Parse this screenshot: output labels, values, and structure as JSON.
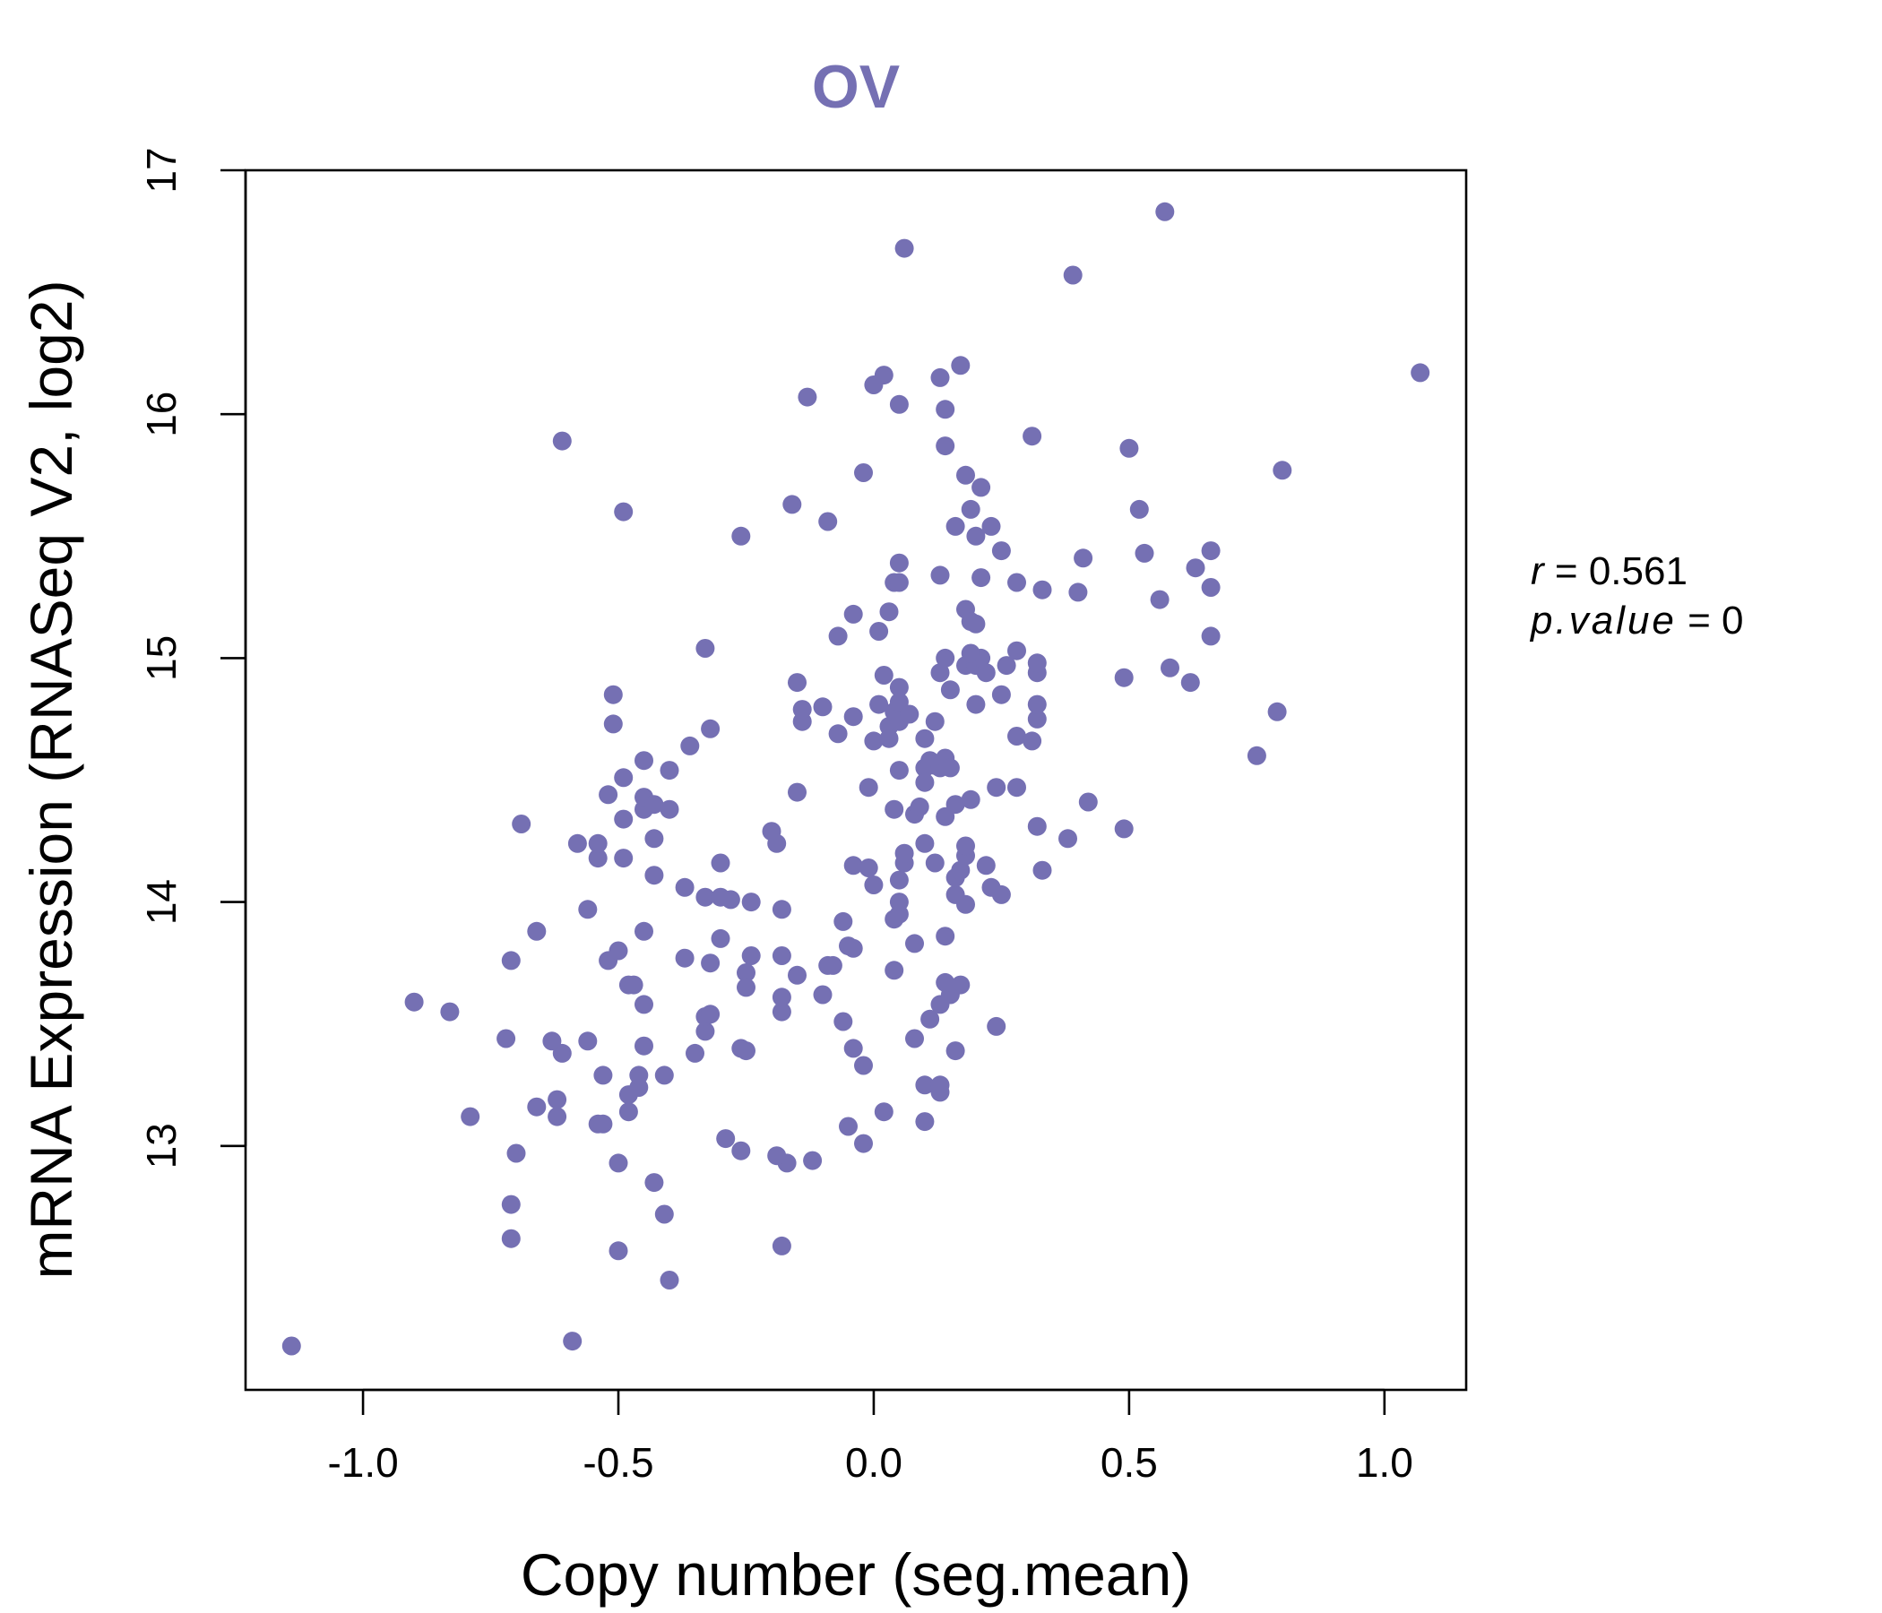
{
  "chart_data": {
    "type": "scatter",
    "title": "OV",
    "xlabel": "Copy number (seg.mean)",
    "ylabel": "mRNA Expression (RNASeq V2, log2)",
    "xlim": [
      -1.23,
      1.16
    ],
    "ylim": [
      12.0,
      17.0
    ],
    "xticks": [
      -1.0,
      -0.5,
      0.0,
      0.5,
      1.0
    ],
    "xtick_labels": [
      "-1.0",
      "-0.5",
      "0.0",
      "0.5",
      "1.0"
    ],
    "yticks": [
      13,
      14,
      15,
      16,
      17
    ],
    "ytick_labels": [
      "13",
      "14",
      "15",
      "16",
      "17"
    ],
    "grid": false,
    "legend": "none",
    "stats": {
      "r_symbol": "r",
      "r_value": "0.561",
      "p_symbol": "p.value",
      "p_value": "0"
    },
    "colors": {
      "points": "#7570b3",
      "title": "#7570b3",
      "axis": "#000000"
    },
    "points": [
      [
        -1.14,
        12.18
      ],
      [
        -0.59,
        12.2
      ],
      [
        -0.4,
        12.45
      ],
      [
        -0.71,
        12.62
      ],
      [
        -0.5,
        12.57
      ],
      [
        -0.18,
        12.59
      ],
      [
        -0.71,
        12.76
      ],
      [
        -0.41,
        12.72
      ],
      [
        -0.43,
        12.85
      ],
      [
        -0.7,
        12.97
      ],
      [
        -0.5,
        12.93
      ],
      [
        -0.17,
        12.93
      ],
      [
        -0.12,
        12.94
      ],
      [
        -0.19,
        12.96
      ],
      [
        -0.26,
        12.98
      ],
      [
        -0.29,
        13.03
      ],
      [
        -0.02,
        13.01
      ],
      [
        -0.05,
        13.08
      ],
      [
        0.02,
        13.14
      ],
      [
        0.1,
        13.1
      ],
      [
        0.13,
        13.22
      ],
      [
        0.1,
        13.25
      ],
      [
        0.13,
        13.25
      ],
      [
        -0.79,
        13.12
      ],
      [
        -0.66,
        13.16
      ],
      [
        -0.62,
        13.12
      ],
      [
        -0.62,
        13.19
      ],
      [
        -0.54,
        13.09
      ],
      [
        -0.53,
        13.09
      ],
      [
        -0.48,
        13.14
      ],
      [
        -0.48,
        13.21
      ],
      [
        -0.46,
        13.24
      ],
      [
        -0.46,
        13.29
      ],
      [
        -0.41,
        13.29
      ],
      [
        -0.53,
        13.29
      ],
      [
        -0.61,
        13.38
      ],
      [
        -0.56,
        13.43
      ],
      [
        -0.63,
        13.43
      ],
      [
        -0.72,
        13.44
      ],
      [
        -0.83,
        13.55
      ],
      [
        -0.9,
        13.59
      ],
      [
        -0.45,
        13.41
      ],
      [
        -0.35,
        13.38
      ],
      [
        -0.26,
        13.4
      ],
      [
        -0.25,
        13.39
      ],
      [
        -0.04,
        13.4
      ],
      [
        -0.02,
        13.33
      ],
      [
        0.08,
        13.44
      ],
      [
        0.16,
        13.39
      ],
      [
        0.11,
        13.52
      ],
      [
        0.24,
        13.49
      ],
      [
        -0.33,
        13.47
      ],
      [
        -0.33,
        13.53
      ],
      [
        -0.32,
        13.54
      ],
      [
        -0.45,
        13.58
      ],
      [
        -0.18,
        13.55
      ],
      [
        -0.18,
        13.61
      ],
      [
        -0.1,
        13.62
      ],
      [
        -0.06,
        13.51
      ],
      [
        0.13,
        13.58
      ],
      [
        0.15,
        13.62
      ],
      [
        0.14,
        13.67
      ],
      [
        0.17,
        13.66
      ],
      [
        -0.48,
        13.66
      ],
      [
        -0.47,
        13.66
      ],
      [
        -0.52,
        13.76
      ],
      [
        -0.5,
        13.8
      ],
      [
        -0.45,
        13.88
      ],
      [
        -0.37,
        13.77
      ],
      [
        -0.32,
        13.75
      ],
      [
        -0.3,
        13.85
      ],
      [
        -0.24,
        13.78
      ],
      [
        -0.25,
        13.71
      ],
      [
        -0.25,
        13.65
      ],
      [
        -0.15,
        13.7
      ],
      [
        -0.18,
        13.78
      ],
      [
        -0.09,
        13.74
      ],
      [
        -0.05,
        13.82
      ],
      [
        -0.04,
        13.81
      ],
      [
        -0.08,
        13.74
      ],
      [
        0.04,
        13.72
      ],
      [
        0.08,
        13.83
      ],
      [
        0.14,
        13.86
      ],
      [
        -0.71,
        13.76
      ],
      [
        -0.66,
        13.88
      ],
      [
        -0.56,
        13.97
      ],
      [
        -0.37,
        14.06
      ],
      [
        -0.33,
        14.02
      ],
      [
        -0.3,
        14.02
      ],
      [
        -0.28,
        14.01
      ],
      [
        -0.24,
        14.0
      ],
      [
        -0.18,
        13.97
      ],
      [
        -0.06,
        13.92
      ],
      [
        0.04,
        13.93
      ],
      [
        0.05,
        13.95
      ],
      [
        0.05,
        14.0
      ],
      [
        0.05,
        14.09
      ],
      [
        0.16,
        14.03
      ],
      [
        0.18,
        13.99
      ],
      [
        0.16,
        14.1
      ],
      [
        0.25,
        14.03
      ],
      [
        0.23,
        14.06
      ],
      [
        -0.04,
        14.15
      ],
      [
        -0.01,
        14.14
      ],
      [
        0.0,
        14.07
      ],
      [
        0.06,
        14.16
      ],
      [
        0.06,
        14.2
      ],
      [
        0.1,
        14.24
      ],
      [
        0.12,
        14.16
      ],
      [
        0.17,
        14.13
      ],
      [
        0.18,
        14.19
      ],
      [
        0.18,
        14.23
      ],
      [
        0.22,
        14.15
      ],
      [
        -0.3,
        14.16
      ],
      [
        -0.43,
        14.11
      ],
      [
        -0.49,
        14.18
      ],
      [
        -0.54,
        14.18
      ],
      [
        -0.54,
        14.24
      ],
      [
        -0.58,
        14.24
      ],
      [
        -0.69,
        14.32
      ],
      [
        -0.43,
        14.26
      ],
      [
        -0.19,
        14.24
      ],
      [
        -0.2,
        14.29
      ],
      [
        0.04,
        14.38
      ],
      [
        0.08,
        14.36
      ],
      [
        0.09,
        14.39
      ],
      [
        0.14,
        14.35
      ],
      [
        0.16,
        14.4
      ],
      [
        0.19,
        14.42
      ],
      [
        0.24,
        14.47
      ],
      [
        0.28,
        14.47
      ],
      [
        0.32,
        14.31
      ],
      [
        0.33,
        14.13
      ],
      [
        0.38,
        14.26
      ],
      [
        0.42,
        14.41
      ],
      [
        0.49,
        14.3
      ],
      [
        -0.49,
        14.34
      ],
      [
        -0.45,
        14.38
      ],
      [
        -0.45,
        14.43
      ],
      [
        -0.43,
        14.4
      ],
      [
        -0.4,
        14.38
      ],
      [
        -0.52,
        14.44
      ],
      [
        -0.49,
        14.51
      ],
      [
        -0.4,
        14.54
      ],
      [
        -0.45,
        14.58
      ],
      [
        -0.15,
        14.45
      ],
      [
        -0.01,
        14.47
      ],
      [
        0.05,
        14.54
      ],
      [
        0.1,
        14.55
      ],
      [
        0.1,
        14.49
      ],
      [
        0.11,
        14.58
      ],
      [
        0.12,
        14.56
      ],
      [
        0.13,
        14.55
      ],
      [
        0.14,
        14.59
      ],
      [
        0.15,
        14.55
      ],
      [
        -0.36,
        14.64
      ],
      [
        -0.32,
        14.71
      ],
      [
        -0.51,
        14.73
      ],
      [
        -0.51,
        14.85
      ],
      [
        -0.14,
        14.74
      ],
      [
        -0.14,
        14.79
      ],
      [
        -0.15,
        14.9
      ],
      [
        -0.1,
        14.8
      ],
      [
        -0.07,
        14.69
      ],
      [
        -0.04,
        14.76
      ],
      [
        0.0,
        14.66
      ],
      [
        0.03,
        14.72
      ],
      [
        0.03,
        14.67
      ],
      [
        0.04,
        14.78
      ],
      [
        0.05,
        14.82
      ],
      [
        0.05,
        14.74
      ],
      [
        0.05,
        14.88
      ],
      [
        0.07,
        14.77
      ],
      [
        0.1,
        14.67
      ],
      [
        0.12,
        14.74
      ],
      [
        0.13,
        14.94
      ],
      [
        0.15,
        14.87
      ],
      [
        0.18,
        14.97
      ],
      [
        0.2,
        14.97
      ],
      [
        0.21,
        15.0
      ],
      [
        0.2,
        14.81
      ],
      [
        0.22,
        14.94
      ],
      [
        0.25,
        14.85
      ],
      [
        0.26,
        14.97
      ],
      [
        0.28,
        15.03
      ],
      [
        0.28,
        14.68
      ],
      [
        0.31,
        14.66
      ],
      [
        0.32,
        14.75
      ],
      [
        0.32,
        14.81
      ],
      [
        0.32,
        14.94
      ],
      [
        0.32,
        14.98
      ],
      [
        0.14,
        15.0
      ],
      [
        0.19,
        15.02
      ],
      [
        0.02,
        14.93
      ],
      [
        0.01,
        14.81
      ],
      [
        -0.33,
        15.04
      ],
      [
        -0.07,
        15.09
      ],
      [
        -0.04,
        15.18
      ],
      [
        0.01,
        15.11
      ],
      [
        0.03,
        15.19
      ],
      [
        0.04,
        15.31
      ],
      [
        0.05,
        15.31
      ],
      [
        0.05,
        15.39
      ],
      [
        0.13,
        15.34
      ],
      [
        0.18,
        15.2
      ],
      [
        0.19,
        15.15
      ],
      [
        0.2,
        15.14
      ],
      [
        0.21,
        15.33
      ],
      [
        0.25,
        15.44
      ],
      [
        0.28,
        15.31
      ],
      [
        0.33,
        15.28
      ],
      [
        0.4,
        15.27
      ],
      [
        0.41,
        15.41
      ],
      [
        0.49,
        14.92
      ],
      [
        0.53,
        15.43
      ],
      [
        0.56,
        15.24
      ],
      [
        0.58,
        14.96
      ],
      [
        0.62,
        14.9
      ],
      [
        0.63,
        15.37
      ],
      [
        0.66,
        15.29
      ],
      [
        0.66,
        15.44
      ],
      [
        0.66,
        15.09
      ],
      [
        0.75,
        14.6
      ],
      [
        0.79,
        14.78
      ],
      [
        -0.26,
        15.5
      ],
      [
        -0.16,
        15.63
      ],
      [
        -0.09,
        15.56
      ],
      [
        0.16,
        15.54
      ],
      [
        0.19,
        15.61
      ],
      [
        0.2,
        15.5
      ],
      [
        0.21,
        15.7
      ],
      [
        0.18,
        15.75
      ],
      [
        0.23,
        15.54
      ],
      [
        0.14,
        15.87
      ],
      [
        0.31,
        15.91
      ],
      [
        0.5,
        15.86
      ],
      [
        0.52,
        15.61
      ],
      [
        0.8,
        15.77
      ],
      [
        -0.02,
        15.76
      ],
      [
        -0.61,
        15.89
      ],
      [
        -0.49,
        15.6
      ],
      [
        -0.13,
        16.07
      ],
      [
        0.0,
        16.12
      ],
      [
        0.02,
        16.16
      ],
      [
        0.05,
        16.04
      ],
      [
        0.13,
        16.15
      ],
      [
        0.14,
        16.02
      ],
      [
        0.17,
        16.2
      ],
      [
        0.06,
        16.68
      ],
      [
        0.39,
        16.57
      ],
      [
        0.57,
        16.83
      ],
      [
        1.07,
        16.17
      ]
    ]
  }
}
